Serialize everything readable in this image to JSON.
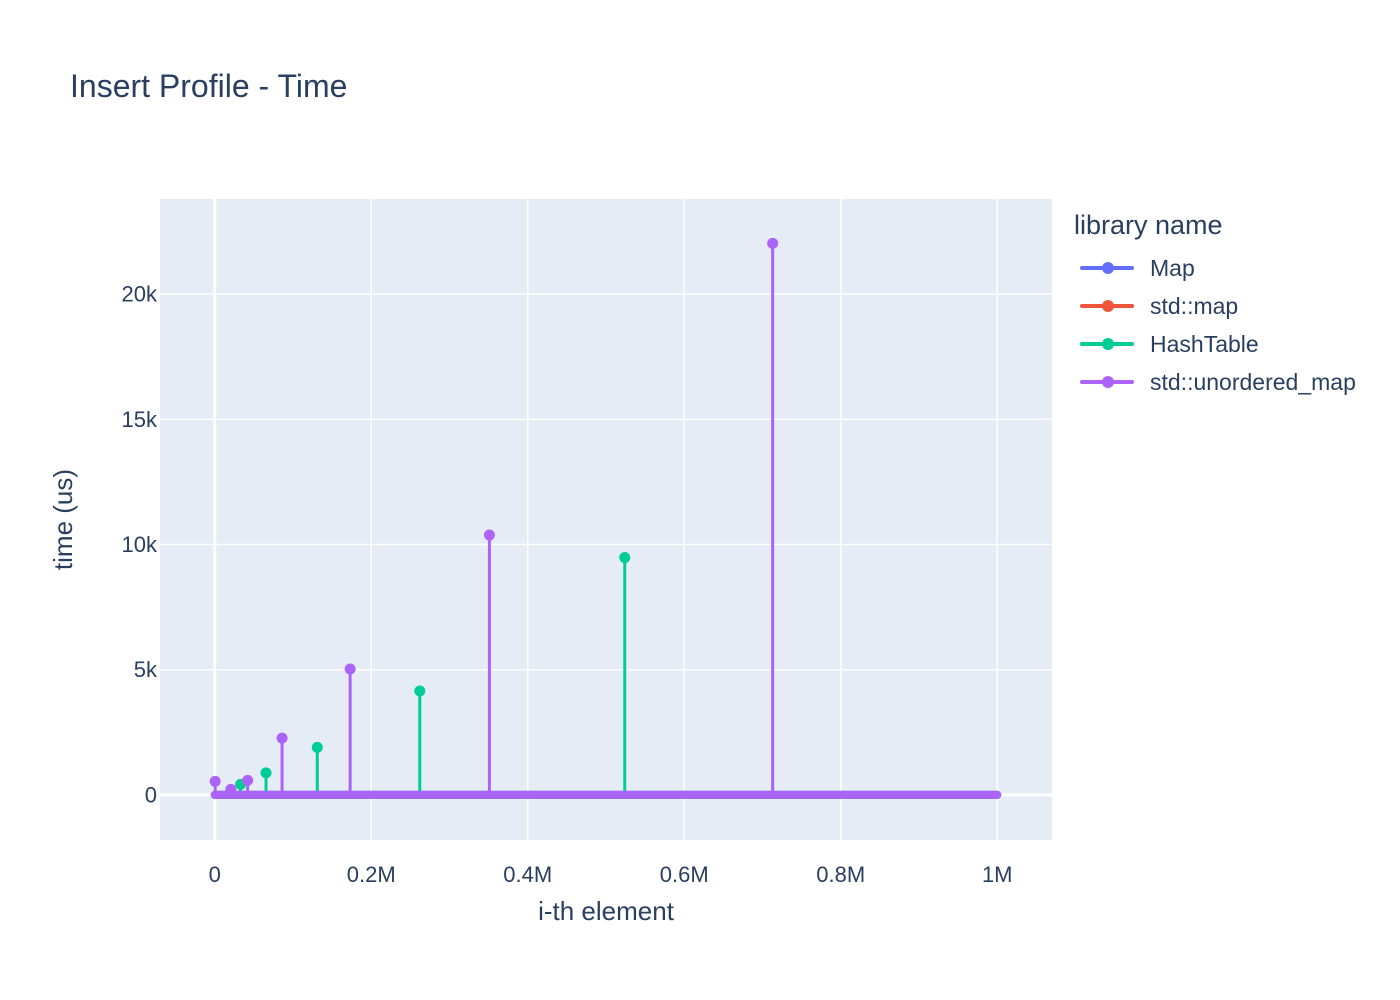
{
  "chart_data": {
    "type": "line",
    "title": "Insert Profile - Time",
    "xlabel": "i-th element",
    "ylabel": "time (us)",
    "xlim": [
      -70000,
      1070000
    ],
    "ylim": [
      -1800,
      23800
    ],
    "x_ticks": [
      {
        "value": 0,
        "label": "0"
      },
      {
        "value": 200000,
        "label": "0.2M"
      },
      {
        "value": 400000,
        "label": "0.4M"
      },
      {
        "value": 600000,
        "label": "0.6M"
      },
      {
        "value": 800000,
        "label": "0.8M"
      },
      {
        "value": 1000000,
        "label": "1M"
      }
    ],
    "y_ticks": [
      {
        "value": 0,
        "label": "0"
      },
      {
        "value": 5000,
        "label": "5k"
      },
      {
        "value": 10000,
        "label": "10k"
      },
      {
        "value": 15000,
        "label": "15k"
      },
      {
        "value": 20000,
        "label": "20k"
      }
    ],
    "grid": true,
    "legend": {
      "title": "library name",
      "placement": "right"
    },
    "baseline_x_range": [
      0,
      1000000
    ],
    "series": [
      {
        "name": "Map",
        "color": "#636efa",
        "spikes": []
      },
      {
        "name": "std::map",
        "color": "#EF553B",
        "spikes": []
      },
      {
        "name": "HashTable",
        "color": "#00cc96",
        "spikes": [
          {
            "x": 33000,
            "y": 420
          },
          {
            "x": 65500,
            "y": 880
          },
          {
            "x": 131000,
            "y": 1900
          },
          {
            "x": 262000,
            "y": 4150
          },
          {
            "x": 524000,
            "y": 9480
          }
        ]
      },
      {
        "name": "std::unordered_map",
        "color": "#ab63fa",
        "spikes": [
          {
            "x": 500,
            "y": 540
          },
          {
            "x": 20500,
            "y": 220
          },
          {
            "x": 42000,
            "y": 580
          },
          {
            "x": 86000,
            "y": 2270
          },
          {
            "x": 173000,
            "y": 5030
          },
          {
            "x": 351000,
            "y": 10380
          },
          {
            "x": 713000,
            "y": 22030
          }
        ]
      }
    ]
  }
}
